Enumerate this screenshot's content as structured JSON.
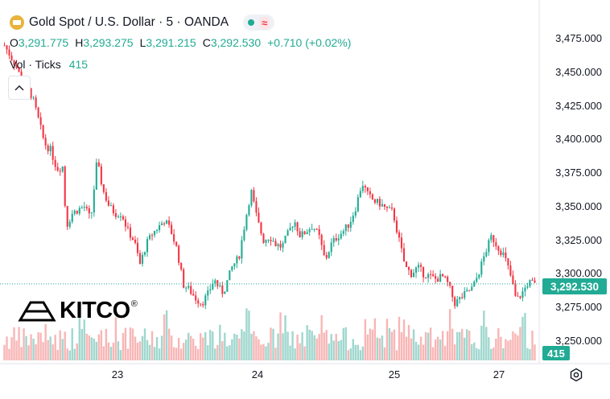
{
  "header": {
    "symbol_title": "Gold Spot / U.S. Dollar · 5 · OANDA",
    "ohlc": [
      {
        "key": "O",
        "value": "3,291.775"
      },
      {
        "key": "H",
        "value": "3,293.275"
      },
      {
        "key": "L",
        "value": "3,291.215"
      },
      {
        "key": "C",
        "value": "3,292.530"
      }
    ],
    "change": "+0.710 (+0.02%)",
    "volume_label": "Vol · Ticks",
    "volume_value": "415",
    "status_wave_icon": "≈"
  },
  "price_axis": {
    "ticks": [
      "3,475.000",
      "3,450.000",
      "3,425.000",
      "3,400.000",
      "3,375.000",
      "3,350.000",
      "3,325.000",
      "3,300.000",
      "3,275.000",
      "3,250.000"
    ],
    "current_price": "3,292.530",
    "current_volume": "415"
  },
  "date_axis": {
    "ticks": [
      "23",
      "24",
      "25",
      "27"
    ]
  },
  "watermark": {
    "logo_text": "KITCO",
    "registered_mark": "®"
  },
  "colors": {
    "up": "#22ab94",
    "down": "#f23645",
    "volume_up": "#8fd0c5",
    "volume_down": "#f7a9a9",
    "accent": "#22ab94"
  },
  "chart_data": {
    "type": "candlestick",
    "title": "Gold Spot / U.S. Dollar · 5 · OANDA",
    "y_range": [
      3240,
      3482
    ],
    "x_ticks": [
      "23",
      "24",
      "25",
      "27"
    ],
    "close_path_points": [
      [
        0,
        3470
      ],
      [
        1.5,
        3458
      ],
      [
        2.5,
        3448
      ],
      [
        3.5,
        3440
      ],
      [
        4.5,
        3432
      ],
      [
        5.5,
        3415
      ],
      [
        6.5,
        3397
      ],
      [
        7.5,
        3392
      ],
      [
        8.5,
        3378
      ],
      [
        9.5,
        3380
      ],
      [
        10,
        3335
      ],
      [
        11,
        3345
      ],
      [
        12,
        3348
      ],
      [
        13,
        3350
      ],
      [
        14,
        3340
      ],
      [
        15,
        3384
      ],
      [
        16,
        3362
      ],
      [
        17,
        3350
      ],
      [
        18,
        3345
      ],
      [
        19,
        3345
      ],
      [
        20,
        3332
      ],
      [
        21,
        3325
      ],
      [
        22,
        3307
      ],
      [
        23,
        3322
      ],
      [
        24,
        3330
      ],
      [
        25,
        3335
      ],
      [
        26,
        3340
      ],
      [
        27,
        3332
      ],
      [
        28,
        3318
      ],
      [
        29,
        3292
      ],
      [
        30,
        3288
      ],
      [
        31,
        3282
      ],
      [
        32,
        3278
      ],
      [
        33,
        3285
      ],
      [
        34,
        3296
      ],
      [
        35,
        3288
      ],
      [
        35.5,
        3286
      ],
      [
        37,
        3306
      ],
      [
        38,
        3312
      ],
      [
        39,
        3338
      ],
      [
        40,
        3362
      ],
      [
        41,
        3340
      ],
      [
        42,
        3325
      ],
      [
        43,
        3328
      ],
      [
        44,
        3322
      ],
      [
        45,
        3320
      ],
      [
        46,
        3330
      ],
      [
        47,
        3340
      ],
      [
        48,
        3328
      ],
      [
        49,
        3332
      ],
      [
        50,
        3336
      ],
      [
        51,
        3328
      ],
      [
        52,
        3310
      ],
      [
        53,
        3322
      ],
      [
        54,
        3328
      ],
      [
        55,
        3332
      ],
      [
        56,
        3338
      ],
      [
        57,
        3350
      ],
      [
        58,
        3368
      ],
      [
        59,
        3358
      ],
      [
        60,
        3354
      ],
      [
        61,
        3352
      ],
      [
        62,
        3348
      ],
      [
        63,
        3346
      ],
      [
        64,
        3325
      ],
      [
        65,
        3305
      ],
      [
        66,
        3300
      ],
      [
        67,
        3305
      ],
      [
        68,
        3300
      ],
      [
        69,
        3298
      ],
      [
        70,
        3296
      ],
      [
        71,
        3298
      ],
      [
        72,
        3292
      ],
      [
        73,
        3278
      ],
      [
        74,
        3282
      ],
      [
        75,
        3286
      ],
      [
        76,
        3290
      ],
      [
        77,
        3302
      ],
      [
        78,
        3316
      ],
      [
        79,
        3328
      ],
      [
        80,
        3320
      ],
      [
        81,
        3314
      ],
      [
        82,
        3300
      ],
      [
        83,
        3280
      ],
      [
        84,
        3286
      ],
      [
        85,
        3294
      ],
      [
        86,
        3292
      ]
    ]
  }
}
